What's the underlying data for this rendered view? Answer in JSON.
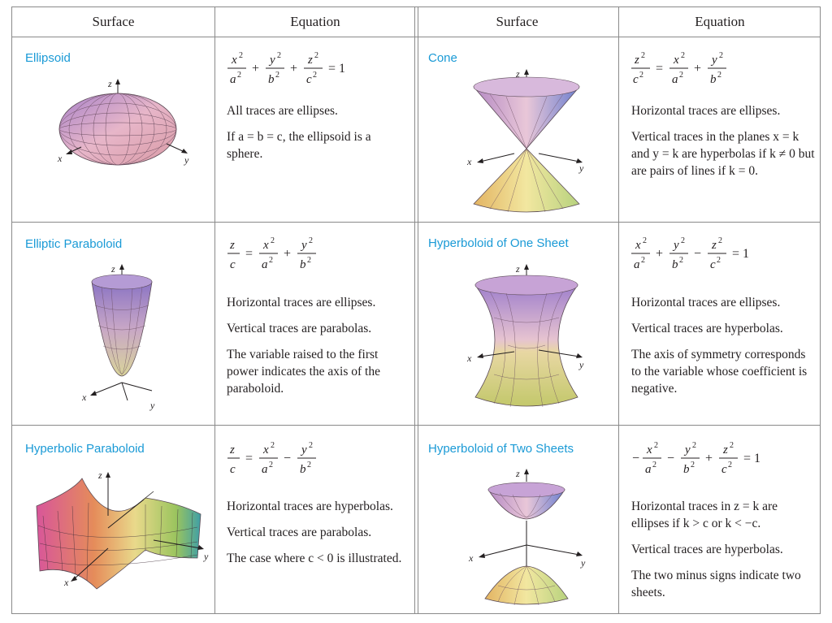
{
  "headers": {
    "surface": "Surface",
    "equation": "Equation"
  },
  "axis_labels": {
    "x": "x",
    "y": "y",
    "z": "z"
  },
  "rows": [
    {
      "left": {
        "name": "Ellipsoid",
        "desc": [
          "All traces are ellipses.",
          "If a = b = c, the ellipsoid is a sphere."
        ]
      },
      "right": {
        "name": "Cone",
        "desc": [
          "Horizontal traces are ellipses.",
          "Vertical traces in the planes x = k and y = k are hyperbolas if k ≠ 0 but are pairs of lines if k = 0."
        ]
      }
    },
    {
      "left": {
        "name": "Elliptic Paraboloid",
        "desc": [
          "Horizontal traces are ellipses.",
          "Vertical traces are parabolas.",
          "The variable raised to the first power indicates the axis of the paraboloid."
        ]
      },
      "right": {
        "name": "Hyperboloid of One Sheet",
        "desc": [
          "Horizontal traces are ellipses.",
          "Vertical traces are hyperbolas.",
          "The axis of symmetry corresponds to the variable whose coefficient is negative."
        ]
      }
    },
    {
      "left": {
        "name": "Hyperbolic Paraboloid",
        "desc": [
          "Horizontal traces are hyperbolas.",
          "Vertical traces are parabolas.",
          "The case where c < 0 is illustrated."
        ]
      },
      "right": {
        "name": "Hyperboloid of Two Sheets",
        "desc": [
          "Horizontal traces in z = k are ellipses if k > c or k < −c.",
          "Vertical traces are hyperbolas.",
          "The two minus signs indicate two sheets."
        ]
      }
    }
  ],
  "colors": {
    "name": "#1a9ad6",
    "grid": "#8a8a8a",
    "text": "#231f20"
  }
}
